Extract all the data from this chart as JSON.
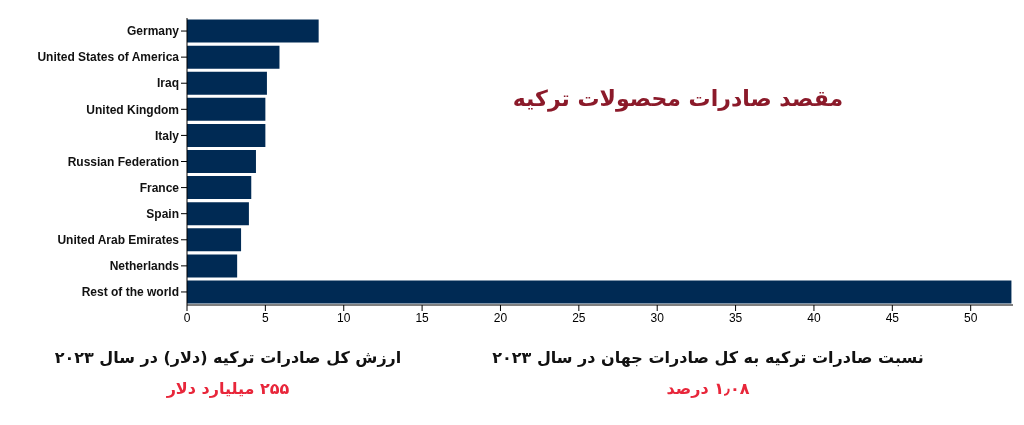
{
  "chart_data": {
    "type": "bar",
    "orientation": "horizontal",
    "title": "مقصد صادرات محصولات ترکیه",
    "categories": [
      "Germany",
      "United States of America",
      "Iraq",
      "United Kingdom",
      "Italy",
      "Russian Federation",
      "France",
      "Spain",
      "United Arab Emirates",
      "Netherlands",
      "Rest of the world"
    ],
    "values": [
      8.4,
      5.9,
      5.1,
      5.0,
      5.0,
      4.4,
      4.1,
      3.95,
      3.45,
      3.2,
      52.6
    ],
    "color": "#002a54",
    "xlim": [
      0,
      52.7
    ],
    "xticks": [
      0,
      5,
      10,
      15,
      20,
      25,
      30,
      35,
      40,
      45,
      50
    ],
    "grid": false,
    "legend": false,
    "annotations": [
      "ارزش کل صادرات ترکیه (دلار) در سال ۲۰۲۳",
      "۲۵۵ میلیارد دلار",
      "نسبت صادرات ترکیه به کل صادرات جهان در سال ۲۰۲۳",
      "۱٫۰۸ درصد"
    ]
  }
}
